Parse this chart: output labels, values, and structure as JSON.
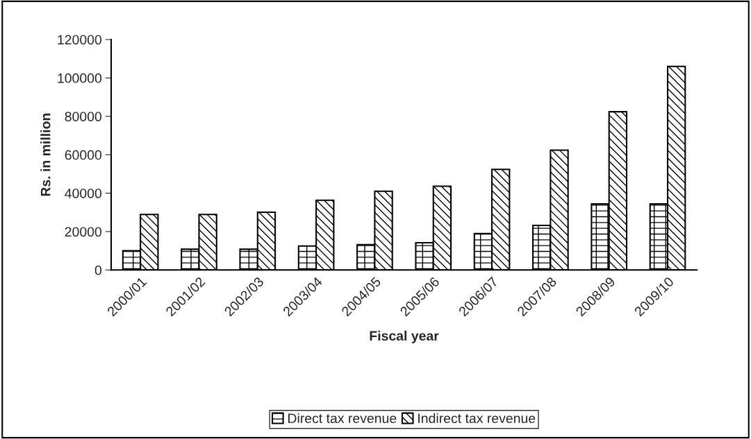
{
  "chart_data": {
    "type": "bar",
    "xlabel": "Fiscal year",
    "ylabel": "Rs. in million",
    "categories": [
      "2000/01",
      "2001/02",
      "2002/03",
      "2003/04",
      "2004/05",
      "2005/06",
      "2006/07",
      "2007/08",
      "2008/09",
      "2009/10"
    ],
    "series": [
      {
        "name": "Direct tax revenue",
        "color": "#000000",
        "values": [
          10000,
          10800,
          10800,
          12500,
          13200,
          14200,
          19000,
          23200,
          34400,
          34400
        ]
      },
      {
        "name": "Indirect tax revenue",
        "color": "#000000",
        "values": [
          28900,
          28900,
          30100,
          36300,
          41000,
          43600,
          52400,
          62400,
          82400,
          106000
        ]
      }
    ],
    "ylim": [
      0,
      120000
    ],
    "yticks": [
      0,
      20000,
      40000,
      60000,
      80000,
      100000,
      120000
    ],
    "grid": false,
    "legend": "bottom"
  }
}
